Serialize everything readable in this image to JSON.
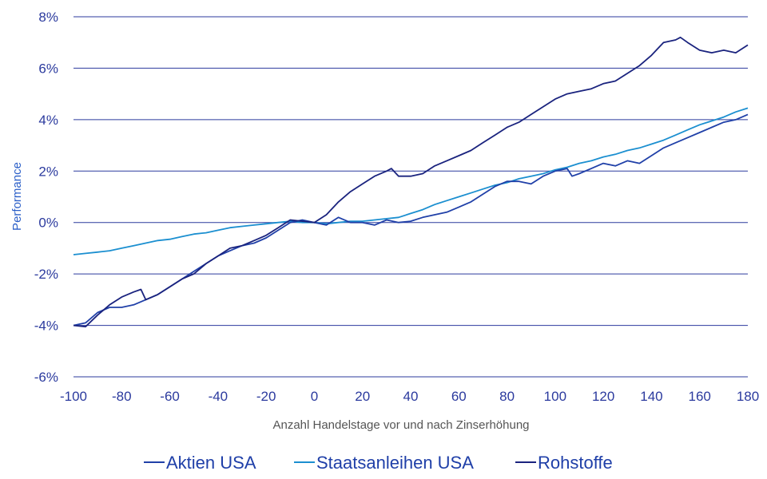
{
  "chart_data": {
    "type": "line",
    "xlabel": "Anzahl Handelstage vor und nach Zinserhöhung",
    "ylabel": "Performance",
    "xlim": [
      -100,
      180
    ],
    "ylim": [
      -6,
      8
    ],
    "x_ticks": [
      -100,
      -80,
      -60,
      -40,
      -20,
      0,
      20,
      40,
      60,
      80,
      100,
      120,
      140,
      160,
      180
    ],
    "x_tick_labels": [
      "-100",
      "-80",
      "-60",
      "-40",
      "-20",
      "0",
      "20",
      "40",
      "60",
      "80",
      "100",
      "120",
      "140",
      "160",
      "180"
    ],
    "y_ticks": [
      -6,
      -4,
      -2,
      0,
      2,
      4,
      6,
      8
    ],
    "y_tick_labels": [
      "-6%",
      "-4%",
      "-2%",
      "0%",
      "2%",
      "4%",
      "6%",
      "8%"
    ],
    "grid": "horizontal",
    "legend_position": "bottom",
    "series": [
      {
        "name": "Aktien USA",
        "color": "#2040a8",
        "x": [
          -100,
          -95,
          -90,
          -85,
          -80,
          -75,
          -70,
          -65,
          -60,
          -55,
          -50,
          -45,
          -40,
          -35,
          -30,
          -25,
          -20,
          -15,
          -10,
          -5,
          0,
          5,
          10,
          15,
          20,
          25,
          30,
          35,
          40,
          45,
          50,
          55,
          60,
          65,
          70,
          75,
          80,
          85,
          90,
          95,
          100,
          105,
          107,
          110,
          115,
          120,
          125,
          130,
          135,
          140,
          145,
          150,
          155,
          160,
          165,
          170,
          175,
          180
        ],
        "y": [
          -4.0,
          -3.9,
          -3.5,
          -3.3,
          -3.3,
          -3.2,
          -3.0,
          -2.8,
          -2.5,
          -2.2,
          -1.9,
          -1.6,
          -1.3,
          -1.1,
          -0.9,
          -0.8,
          -0.6,
          -0.3,
          0.0,
          0.1,
          0.0,
          -0.1,
          0.2,
          0.0,
          0.0,
          -0.1,
          0.1,
          0.0,
          0.05,
          0.2,
          0.3,
          0.4,
          0.6,
          0.8,
          1.1,
          1.4,
          1.6,
          1.6,
          1.5,
          1.8,
          2.0,
          2.1,
          1.8,
          1.9,
          2.1,
          2.3,
          2.2,
          2.4,
          2.3,
          2.6,
          2.9,
          3.1,
          3.3,
          3.5,
          3.7,
          3.9,
          4.0,
          4.2
        ]
      },
      {
        "name": "Staatsanleihen USA",
        "color": "#1b8fd0",
        "x": [
          -100,
          -95,
          -90,
          -85,
          -80,
          -75,
          -70,
          -65,
          -60,
          -55,
          -50,
          -45,
          -40,
          -35,
          -30,
          -25,
          -20,
          -15,
          -10,
          -5,
          0,
          5,
          10,
          15,
          20,
          25,
          30,
          35,
          40,
          45,
          50,
          55,
          60,
          65,
          70,
          75,
          80,
          85,
          90,
          95,
          100,
          105,
          110,
          115,
          120,
          125,
          130,
          135,
          140,
          145,
          150,
          155,
          160,
          165,
          170,
          175,
          180
        ],
        "y": [
          -1.25,
          -1.2,
          -1.15,
          -1.1,
          -1.0,
          -0.9,
          -0.8,
          -0.7,
          -0.65,
          -0.55,
          -0.45,
          -0.4,
          -0.3,
          -0.2,
          -0.15,
          -0.1,
          -0.05,
          0.0,
          0.05,
          0.0,
          0.0,
          -0.05,
          0.0,
          0.05,
          0.05,
          0.1,
          0.15,
          0.2,
          0.35,
          0.5,
          0.7,
          0.85,
          1.0,
          1.15,
          1.3,
          1.45,
          1.55,
          1.7,
          1.8,
          1.9,
          2.05,
          2.15,
          2.3,
          2.4,
          2.55,
          2.65,
          2.8,
          2.9,
          3.05,
          3.2,
          3.4,
          3.6,
          3.8,
          3.95,
          4.1,
          4.3,
          4.45
        ]
      },
      {
        "name": "Rohstoffe",
        "color": "#1a237e",
        "x": [
          -100,
          -95,
          -90,
          -85,
          -80,
          -75,
          -72,
          -70,
          -65,
          -60,
          -55,
          -50,
          -45,
          -40,
          -35,
          -30,
          -25,
          -20,
          -15,
          -10,
          -5,
          0,
          5,
          10,
          15,
          20,
          25,
          30,
          32,
          35,
          40,
          45,
          50,
          55,
          60,
          65,
          70,
          75,
          80,
          85,
          90,
          95,
          100,
          105,
          110,
          115,
          120,
          125,
          130,
          135,
          140,
          145,
          150,
          152,
          155,
          160,
          165,
          170,
          175,
          180
        ],
        "y": [
          -4.0,
          -4.05,
          -3.6,
          -3.2,
          -2.9,
          -2.7,
          -2.6,
          -3.0,
          -2.8,
          -2.5,
          -2.2,
          -2.0,
          -1.6,
          -1.3,
          -1.0,
          -0.9,
          -0.7,
          -0.5,
          -0.2,
          0.1,
          0.05,
          0.0,
          0.3,
          0.8,
          1.2,
          1.5,
          1.8,
          2.0,
          2.1,
          1.8,
          1.8,
          1.9,
          2.2,
          2.4,
          2.6,
          2.8,
          3.1,
          3.4,
          3.7,
          3.9,
          4.2,
          4.5,
          4.8,
          5.0,
          5.1,
          5.2,
          5.4,
          5.5,
          5.8,
          6.1,
          6.5,
          7.0,
          7.1,
          7.2,
          7.0,
          6.7,
          6.6,
          6.7,
          6.6,
          6.9
        ]
      }
    ]
  }
}
